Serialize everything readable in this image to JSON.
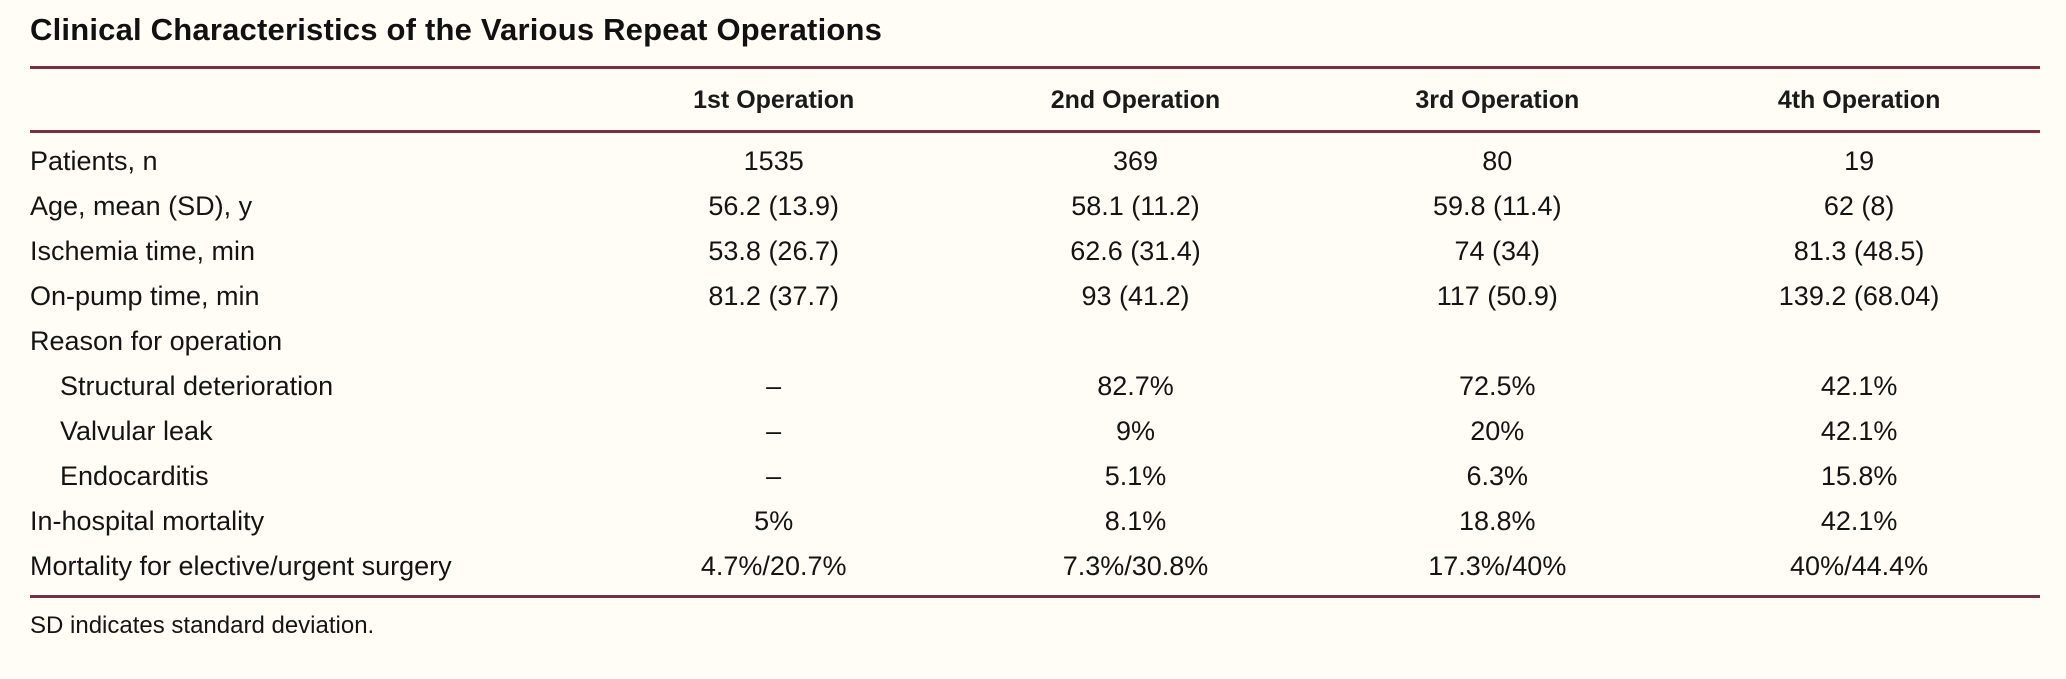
{
  "table": {
    "title": "Clinical Characteristics of the Various Repeat Operations",
    "columns": [
      "",
      "1st Operation",
      "2nd Operation",
      "3rd Operation",
      "4th Operation"
    ],
    "rows": [
      {
        "label": "Patients, n",
        "indent": false,
        "values": [
          "1535",
          "369",
          "80",
          "19"
        ]
      },
      {
        "label": "Age, mean (SD), y",
        "indent": false,
        "values": [
          "56.2 (13.9)",
          "58.1 (11.2)",
          "59.8 (11.4)",
          "62 (8)"
        ]
      },
      {
        "label": "Ischemia time, min",
        "indent": false,
        "values": [
          "53.8 (26.7)",
          "62.6 (31.4)",
          "74 (34)",
          "81.3 (48.5)"
        ]
      },
      {
        "label": "On-pump time, min",
        "indent": false,
        "values": [
          "81.2 (37.7)",
          "93 (41.2)",
          "117 (50.9)",
          "139.2 (68.04)"
        ]
      },
      {
        "label": "Reason for operation",
        "indent": false,
        "values": [
          "",
          "",
          "",
          ""
        ]
      },
      {
        "label": "Structural deterioration",
        "indent": true,
        "values": [
          "–",
          "82.7%",
          "72.5%",
          "42.1%"
        ]
      },
      {
        "label": "Valvular leak",
        "indent": true,
        "values": [
          "–",
          "9%",
          "20%",
          "42.1%"
        ]
      },
      {
        "label": "Endocarditis",
        "indent": true,
        "values": [
          "–",
          "5.1%",
          "6.3%",
          "15.8%"
        ]
      },
      {
        "label": "In-hospital mortality",
        "indent": false,
        "values": [
          "5%",
          "8.1%",
          "18.8%",
          "42.1%"
        ]
      },
      {
        "label": "Mortality for elective/urgent surgery",
        "indent": false,
        "values": [
          "4.7%/20.7%",
          "7.3%/30.8%",
          "17.3%/40%",
          "40%/44.4%"
        ]
      }
    ],
    "footnote": "SD indicates standard deviation.",
    "rule_color": "#7a2e44"
  }
}
